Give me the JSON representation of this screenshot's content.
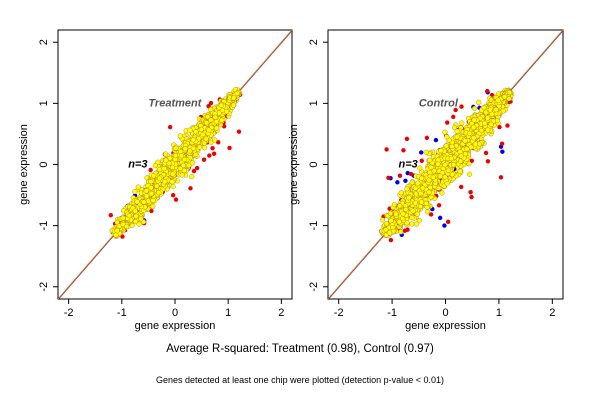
{
  "chart_data": [
    {
      "type": "scatter",
      "title": "Treatment",
      "annotation": "n=3",
      "xlabel": "gene expression",
      "ylabel": "gene expression",
      "xlim": [
        -2.2,
        2.2
      ],
      "ylim": [
        -2.2,
        2.2
      ],
      "xticks": [
        -2,
        -1,
        0,
        1,
        2
      ],
      "yticks": [
        -2,
        -1,
        0,
        1,
        2
      ],
      "reference_lines": [
        {
          "slope": 1,
          "intercept": 0,
          "color": "#2222cc"
        },
        {
          "slope": 1,
          "intercept": 0,
          "color": "#e07000"
        }
      ],
      "cloud": {
        "x_range": [
          -1.15,
          1.2
        ],
        "spread": 0.18
      },
      "series": [
        {
          "color": "#0000ee",
          "count": 12
        },
        {
          "color": "#ee0000",
          "count": 60
        },
        {
          "color": "#ffff00",
          "count": 1400
        }
      ],
      "grid": false
    },
    {
      "type": "scatter",
      "title": "Control",
      "annotation": "n=3",
      "xlabel": "gene expression",
      "ylabel": "gene expression",
      "xlim": [
        -2.2,
        2.2
      ],
      "ylim": [
        -2.2,
        2.2
      ],
      "xticks": [
        -2,
        -1,
        0,
        1,
        2
      ],
      "yticks": [
        -2,
        -1,
        0,
        1,
        2
      ],
      "reference_lines": [
        {
          "slope": 1,
          "intercept": 0,
          "color": "#2222cc"
        },
        {
          "slope": 1,
          "intercept": 0,
          "color": "#e07000"
        }
      ],
      "cloud": {
        "x_range": [
          -1.15,
          1.2
        ],
        "spread": 0.24
      },
      "series": [
        {
          "color": "#0000ee",
          "count": 45
        },
        {
          "color": "#ee0000",
          "count": 90
        },
        {
          "color": "#ffff00",
          "count": 1400
        }
      ],
      "grid": false
    }
  ],
  "caption": "Average R-squared: Treatment (0.98), Control (0.97)",
  "footnote": "Genes detected at least one chip were plotted (detection p-value < 0.01)"
}
